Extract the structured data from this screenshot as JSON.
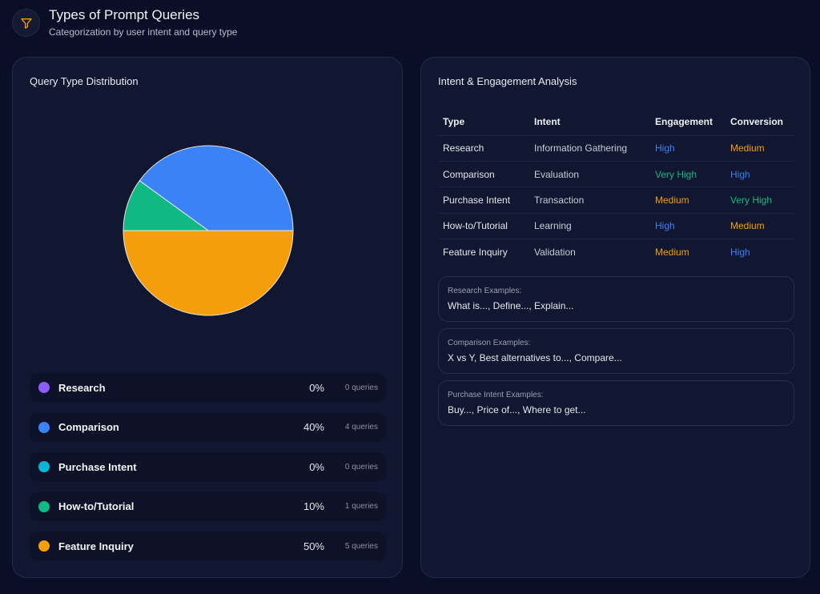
{
  "header": {
    "title": "Types of Prompt Queries",
    "subtitle": "Categorization by user intent and query type",
    "icon": "filter-icon",
    "icon_color": "#f59e0b"
  },
  "left_card": {
    "title": "Query Type Distribution"
  },
  "chart_data": {
    "type": "pie",
    "categories": [
      "Research",
      "Comparison",
      "Purchase Intent",
      "How-to/Tutorial",
      "Feature Inquiry"
    ],
    "values": [
      0,
      40,
      0,
      10,
      50
    ],
    "colors": [
      "#8b5cf6",
      "#3b82f6",
      "#06b6d4",
      "#10b981",
      "#f59e0b"
    ]
  },
  "legend": [
    {
      "label": "Research",
      "pct": "0%",
      "count": "0 queries",
      "color": "#8b5cf6"
    },
    {
      "label": "Comparison",
      "pct": "40%",
      "count": "4 queries",
      "color": "#3b82f6"
    },
    {
      "label": "Purchase Intent",
      "pct": "0%",
      "count": "0 queries",
      "color": "#06b6d4"
    },
    {
      "label": "How-to/Tutorial",
      "pct": "10%",
      "count": "1 queries",
      "color": "#10b981"
    },
    {
      "label": "Feature Inquiry",
      "pct": "50%",
      "count": "5 queries",
      "color": "#f59e0b"
    }
  ],
  "right_card": {
    "title": "Intent & Engagement Analysis",
    "columns": [
      "Type",
      "Intent",
      "Engagement",
      "Conversion"
    ],
    "rows": [
      {
        "type": "Research",
        "intent": "Information Gathering",
        "engagement": "High",
        "engagement_color": "#3b82f6",
        "conversion": "Medium",
        "conversion_color": "#f59e0b"
      },
      {
        "type": "Comparison",
        "intent": "Evaluation",
        "engagement": "Very High",
        "engagement_color": "#10b981",
        "conversion": "High",
        "conversion_color": "#3b82f6"
      },
      {
        "type": "Purchase Intent",
        "intent": "Transaction",
        "engagement": "Medium",
        "engagement_color": "#f59e0b",
        "conversion": "Very High",
        "conversion_color": "#10b981"
      },
      {
        "type": "How-to/Tutorial",
        "intent": "Learning",
        "engagement": "High",
        "engagement_color": "#3b82f6",
        "conversion": "Medium",
        "conversion_color": "#f59e0b"
      },
      {
        "type": "Feature Inquiry",
        "intent": "Validation",
        "engagement": "Medium",
        "engagement_color": "#f59e0b",
        "conversion": "High",
        "conversion_color": "#3b82f6"
      }
    ],
    "examples": [
      {
        "label": "Research Examples:",
        "text": "What is..., Define..., Explain..."
      },
      {
        "label": "Comparison Examples:",
        "text": "X vs Y, Best alternatives to..., Compare..."
      },
      {
        "label": "Purchase Intent Examples:",
        "text": "Buy..., Price of..., Where to get..."
      }
    ]
  }
}
